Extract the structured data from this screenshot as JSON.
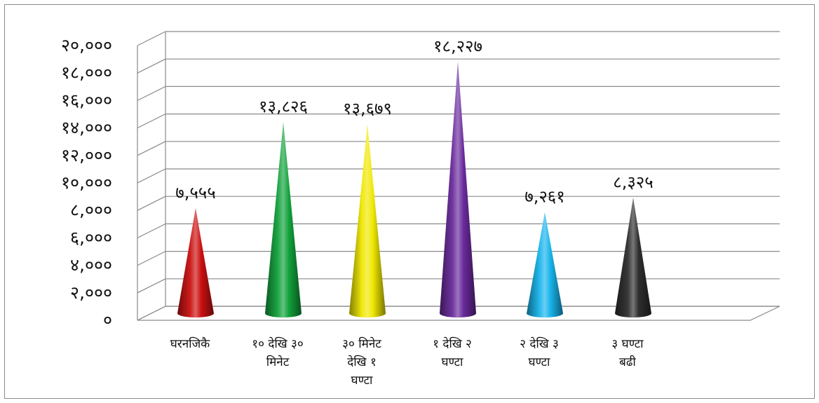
{
  "chart_data": {
    "type": "bar",
    "style": "3d-cone",
    "categories": [
      [
        "घरनजिकै"
      ],
      [
        "१० देखि ३०",
        "मिनेट"
      ],
      [
        "३० मिनेट",
        "देखि १",
        "घण्टा"
      ],
      [
        "१ देखि २",
        "घण्टा"
      ],
      [
        "२  देखि ३",
        "घण्टा"
      ],
      [
        "३ घण्टा",
        "बढी"
      ]
    ],
    "values": [
      7555,
      13826,
      13679,
      18227,
      7261,
      8325
    ],
    "value_labels": [
      "७,५५५",
      "१३,८२६",
      "१३,६७९",
      "१८,२२७",
      "७,२६१",
      "८,३२५"
    ],
    "colors": [
      "#cc1010",
      "#12a23c",
      "#f0e800",
      "#6a2a9c",
      "#18b4ec",
      "#2e2e2e"
    ],
    "ylim": [
      0,
      20000
    ],
    "yticks": [
      "०",
      "२,०००",
      "४,०००",
      "६,०००",
      "८,०००",
      "१०,०००",
      "१२,०००",
      "१४,०००",
      "१६,०००",
      "१८,०००",
      "२०,०००"
    ],
    "grid": true,
    "legend": "none",
    "title": "",
    "xlabel": "",
    "ylabel": ""
  }
}
